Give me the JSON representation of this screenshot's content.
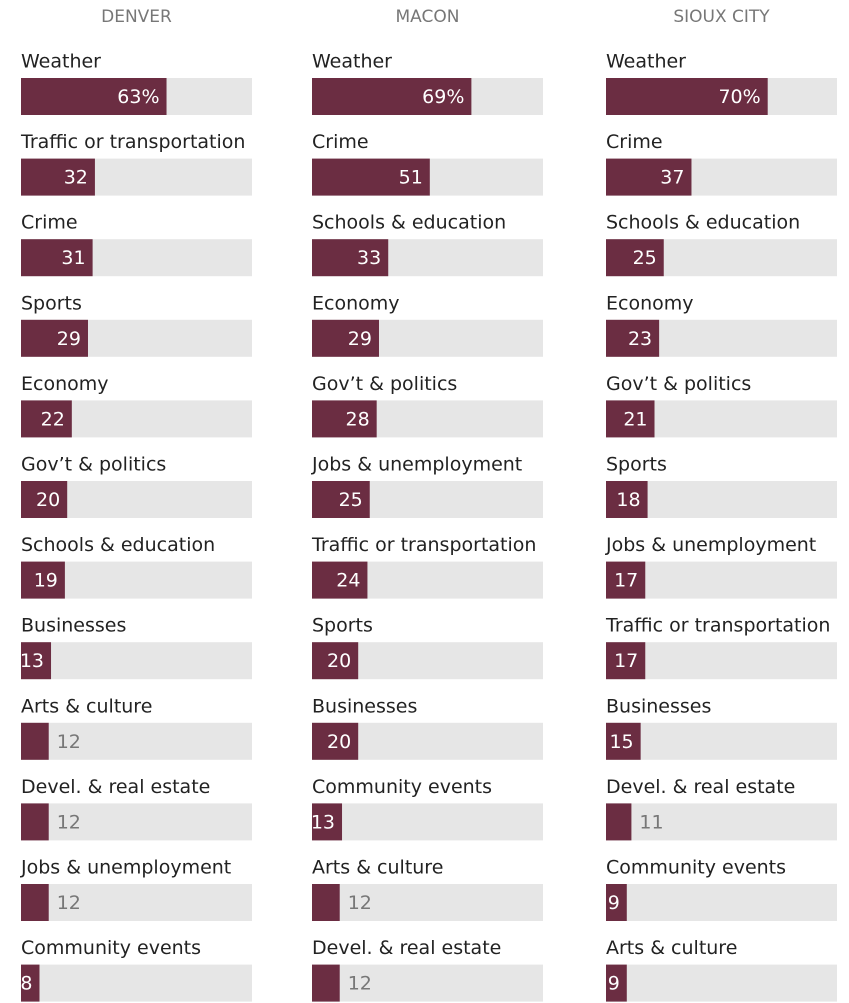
{
  "chart_data": [
    {
      "type": "bar",
      "title": "DENVER",
      "categories": [
        "Weather",
        "Traffic or transportation",
        "Crime",
        "Sports",
        "Economy",
        "Gov’t & politics",
        "Schools & education",
        "Businesses",
        "Arts & culture",
        "Devel. & real estate",
        "Jobs & unemployment",
        "Community events"
      ],
      "values": [
        63,
        32,
        31,
        29,
        22,
        20,
        19,
        13,
        12,
        12,
        12,
        8
      ],
      "value_labels": [
        "63%",
        "32",
        "31",
        "29",
        "22",
        "20",
        "19",
        "13",
        "12",
        "12",
        "12",
        "8"
      ],
      "color": "#6b2d42",
      "xlim": [
        0,
        100
      ]
    },
    {
      "type": "bar",
      "title": "MACON",
      "categories": [
        "Weather",
        "Crime",
        "Schools & education",
        "Economy",
        "Gov’t & politics",
        "Jobs & unemployment",
        "Traffic or transportation",
        "Sports",
        "Businesses",
        "Community events",
        "Arts & culture",
        "Devel. & real estate"
      ],
      "values": [
        69,
        51,
        33,
        29,
        28,
        25,
        24,
        20,
        20,
        13,
        12,
        12
      ],
      "value_labels": [
        "69%",
        "51",
        "33",
        "29",
        "28",
        "25",
        "24",
        "20",
        "20",
        "13",
        "12",
        "12"
      ],
      "color": "#6b2d42",
      "xlim": [
        0,
        100
      ]
    },
    {
      "type": "bar",
      "title": "SIOUX CITY",
      "categories": [
        "Weather",
        "Crime",
        "Schools & education",
        "Economy",
        "Gov’t & politics",
        "Sports",
        "Jobs & unemployment",
        "Traffic or transportation",
        "Businesses",
        "Devel. & real estate",
        "Community events",
        "Arts & culture"
      ],
      "values": [
        70,
        37,
        25,
        23,
        21,
        18,
        17,
        17,
        15,
        11,
        9,
        9
      ],
      "value_labels": [
        "70%",
        "37",
        "25",
        "23",
        "21",
        "18",
        "17",
        "17",
        "15",
        "11",
        "9",
        "9"
      ],
      "color": "#6b2d42",
      "xlim": [
        0,
        100
      ]
    }
  ]
}
